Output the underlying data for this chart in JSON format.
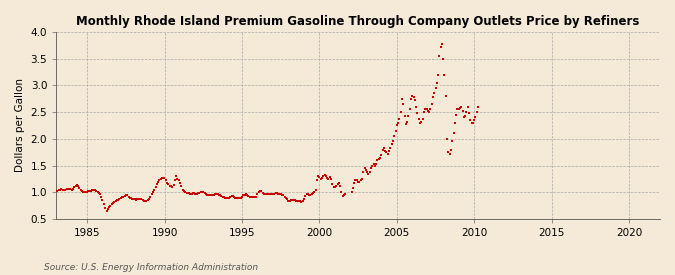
{
  "title": "Monthly Rhode Island Premium Gasoline Through Company Outlets Price by Refiners",
  "ylabel": "Dollars per Gallon",
  "source": "Source: U.S. Energy Information Administration",
  "xlim": [
    1983,
    2022
  ],
  "ylim": [
    0.5,
    4.0
  ],
  "yticks": [
    0.5,
    1.0,
    1.5,
    2.0,
    2.5,
    3.0,
    3.5,
    4.0
  ],
  "xticks": [
    1985,
    1990,
    1995,
    2000,
    2005,
    2010,
    2015,
    2020
  ],
  "background_color": "#f5ead8",
  "marker_color": "#cc0000",
  "data": [
    [
      1983.08,
      1.03
    ],
    [
      1983.17,
      1.04
    ],
    [
      1983.25,
      1.05
    ],
    [
      1983.33,
      1.06
    ],
    [
      1983.42,
      1.05
    ],
    [
      1983.5,
      1.05
    ],
    [
      1983.58,
      1.05
    ],
    [
      1983.67,
      1.06
    ],
    [
      1983.75,
      1.07
    ],
    [
      1983.83,
      1.07
    ],
    [
      1983.92,
      1.06
    ],
    [
      1983.99,
      1.05
    ],
    [
      1984.08,
      1.07
    ],
    [
      1984.17,
      1.1
    ],
    [
      1984.25,
      1.12
    ],
    [
      1984.33,
      1.13
    ],
    [
      1984.42,
      1.11
    ],
    [
      1984.5,
      1.08
    ],
    [
      1984.58,
      1.05
    ],
    [
      1984.67,
      1.03
    ],
    [
      1984.75,
      1.01
    ],
    [
      1984.83,
      1.01
    ],
    [
      1984.92,
      1.01
    ],
    [
      1984.99,
      1.0
    ],
    [
      1985.08,
      1.02
    ],
    [
      1985.17,
      1.03
    ],
    [
      1985.25,
      1.03
    ],
    [
      1985.33,
      1.04
    ],
    [
      1985.42,
      1.04
    ],
    [
      1985.5,
      1.04
    ],
    [
      1985.58,
      1.03
    ],
    [
      1985.67,
      1.0
    ],
    [
      1985.75,
      0.99
    ],
    [
      1985.83,
      0.97
    ],
    [
      1985.92,
      0.92
    ],
    [
      1985.99,
      0.85
    ],
    [
      1986.08,
      0.78
    ],
    [
      1986.17,
      0.7
    ],
    [
      1986.25,
      0.65
    ],
    [
      1986.33,
      0.68
    ],
    [
      1986.42,
      0.72
    ],
    [
      1986.5,
      0.75
    ],
    [
      1986.58,
      0.78
    ],
    [
      1986.67,
      0.8
    ],
    [
      1986.75,
      0.82
    ],
    [
      1986.83,
      0.84
    ],
    [
      1986.92,
      0.85
    ],
    [
      1986.99,
      0.86
    ],
    [
      1987.08,
      0.88
    ],
    [
      1987.17,
      0.9
    ],
    [
      1987.25,
      0.91
    ],
    [
      1987.33,
      0.92
    ],
    [
      1987.42,
      0.93
    ],
    [
      1987.5,
      0.94
    ],
    [
      1987.58,
      0.94
    ],
    [
      1987.67,
      0.92
    ],
    [
      1987.75,
      0.9
    ],
    [
      1987.83,
      0.89
    ],
    [
      1987.92,
      0.88
    ],
    [
      1987.99,
      0.87
    ],
    [
      1988.08,
      0.87
    ],
    [
      1988.17,
      0.86
    ],
    [
      1988.25,
      0.87
    ],
    [
      1988.33,
      0.88
    ],
    [
      1988.42,
      0.88
    ],
    [
      1988.5,
      0.88
    ],
    [
      1988.58,
      0.86
    ],
    [
      1988.67,
      0.83
    ],
    [
      1988.75,
      0.83
    ],
    [
      1988.83,
      0.84
    ],
    [
      1988.92,
      0.85
    ],
    [
      1988.99,
      0.87
    ],
    [
      1989.08,
      0.92
    ],
    [
      1989.17,
      0.96
    ],
    [
      1989.25,
      1.0
    ],
    [
      1989.33,
      1.05
    ],
    [
      1989.42,
      1.1
    ],
    [
      1989.5,
      1.15
    ],
    [
      1989.58,
      1.19
    ],
    [
      1989.67,
      1.22
    ],
    [
      1989.75,
      1.25
    ],
    [
      1989.83,
      1.26
    ],
    [
      1989.92,
      1.27
    ],
    [
      1989.99,
      1.27
    ],
    [
      1990.08,
      1.22
    ],
    [
      1990.17,
      1.18
    ],
    [
      1990.25,
      1.15
    ],
    [
      1990.33,
      1.12
    ],
    [
      1990.42,
      1.12
    ],
    [
      1990.5,
      1.1
    ],
    [
      1990.58,
      1.14
    ],
    [
      1990.67,
      1.22
    ],
    [
      1990.75,
      1.3
    ],
    [
      1990.83,
      1.25
    ],
    [
      1990.92,
      1.22
    ],
    [
      1990.99,
      1.18
    ],
    [
      1991.08,
      1.12
    ],
    [
      1991.17,
      1.05
    ],
    [
      1991.25,
      1.02
    ],
    [
      1991.33,
      1.0
    ],
    [
      1991.42,
      0.99
    ],
    [
      1991.5,
      0.99
    ],
    [
      1991.58,
      0.98
    ],
    [
      1991.67,
      0.97
    ],
    [
      1991.75,
      0.97
    ],
    [
      1991.83,
      0.98
    ],
    [
      1991.92,
      0.98
    ],
    [
      1991.99,
      0.97
    ],
    [
      1992.08,
      0.97
    ],
    [
      1992.17,
      0.98
    ],
    [
      1992.25,
      0.99
    ],
    [
      1992.33,
      1.0
    ],
    [
      1992.42,
      1.0
    ],
    [
      1992.5,
      1.0
    ],
    [
      1992.58,
      0.99
    ],
    [
      1992.67,
      0.97
    ],
    [
      1992.75,
      0.95
    ],
    [
      1992.83,
      0.94
    ],
    [
      1992.92,
      0.94
    ],
    [
      1992.99,
      0.94
    ],
    [
      1993.08,
      0.95
    ],
    [
      1993.17,
      0.95
    ],
    [
      1993.25,
      0.96
    ],
    [
      1993.33,
      0.96
    ],
    [
      1993.42,
      0.96
    ],
    [
      1993.5,
      0.95
    ],
    [
      1993.58,
      0.94
    ],
    [
      1993.67,
      0.93
    ],
    [
      1993.75,
      0.92
    ],
    [
      1993.83,
      0.91
    ],
    [
      1993.92,
      0.9
    ],
    [
      1993.99,
      0.89
    ],
    [
      1994.08,
      0.89
    ],
    [
      1994.17,
      0.9
    ],
    [
      1994.25,
      0.92
    ],
    [
      1994.33,
      0.93
    ],
    [
      1994.42,
      0.93
    ],
    [
      1994.5,
      0.92
    ],
    [
      1994.58,
      0.9
    ],
    [
      1994.67,
      0.9
    ],
    [
      1994.75,
      0.9
    ],
    [
      1994.83,
      0.9
    ],
    [
      1994.92,
      0.9
    ],
    [
      1994.99,
      0.92
    ],
    [
      1995.08,
      0.94
    ],
    [
      1995.17,
      0.95
    ],
    [
      1995.25,
      0.96
    ],
    [
      1995.33,
      0.95
    ],
    [
      1995.42,
      0.93
    ],
    [
      1995.5,
      0.92
    ],
    [
      1995.58,
      0.91
    ],
    [
      1995.67,
      0.91
    ],
    [
      1995.75,
      0.91
    ],
    [
      1995.83,
      0.91
    ],
    [
      1995.92,
      0.91
    ],
    [
      1995.99,
      0.96
    ],
    [
      1996.08,
      1.0
    ],
    [
      1996.17,
      1.02
    ],
    [
      1996.25,
      1.02
    ],
    [
      1996.33,
      0.99
    ],
    [
      1996.42,
      0.97
    ],
    [
      1996.5,
      0.97
    ],
    [
      1996.58,
      0.97
    ],
    [
      1996.67,
      0.97
    ],
    [
      1996.75,
      0.96
    ],
    [
      1996.83,
      0.96
    ],
    [
      1996.92,
      0.96
    ],
    [
      1996.99,
      0.96
    ],
    [
      1997.08,
      0.97
    ],
    [
      1997.17,
      0.98
    ],
    [
      1997.25,
      0.98
    ],
    [
      1997.33,
      0.97
    ],
    [
      1997.42,
      0.96
    ],
    [
      1997.5,
      0.96
    ],
    [
      1997.58,
      0.95
    ],
    [
      1997.67,
      0.94
    ],
    [
      1997.75,
      0.92
    ],
    [
      1997.83,
      0.9
    ],
    [
      1997.92,
      0.87
    ],
    [
      1997.99,
      0.84
    ],
    [
      1998.08,
      0.84
    ],
    [
      1998.17,
      0.85
    ],
    [
      1998.25,
      0.86
    ],
    [
      1998.33,
      0.86
    ],
    [
      1998.42,
      0.85
    ],
    [
      1998.5,
      0.84
    ],
    [
      1998.58,
      0.83
    ],
    [
      1998.67,
      0.84
    ],
    [
      1998.75,
      0.83
    ],
    [
      1998.83,
      0.82
    ],
    [
      1998.92,
      0.84
    ],
    [
      1998.99,
      0.88
    ],
    [
      1999.08,
      0.93
    ],
    [
      1999.17,
      0.96
    ],
    [
      1999.25,
      0.96
    ],
    [
      1999.33,
      0.95
    ],
    [
      1999.42,
      0.95
    ],
    [
      1999.5,
      0.96
    ],
    [
      1999.58,
      0.98
    ],
    [
      1999.67,
      1.0
    ],
    [
      1999.75,
      1.05
    ],
    [
      1999.83,
      1.22
    ],
    [
      1999.92,
      1.3
    ],
    [
      1999.99,
      1.28
    ],
    [
      2000.08,
      1.24
    ],
    [
      2000.17,
      1.26
    ],
    [
      2000.25,
      1.3
    ],
    [
      2000.33,
      1.32
    ],
    [
      2000.42,
      1.3
    ],
    [
      2000.5,
      1.26
    ],
    [
      2000.58,
      1.24
    ],
    [
      2000.67,
      1.28
    ],
    [
      2000.75,
      1.24
    ],
    [
      2000.83,
      1.16
    ],
    [
      2000.92,
      1.1
    ],
    [
      2000.99,
      1.1
    ],
    [
      2001.08,
      1.12
    ],
    [
      2001.17,
      1.15
    ],
    [
      2001.25,
      1.18
    ],
    [
      2001.33,
      1.12
    ],
    [
      2001.42,
      1.0
    ],
    [
      2001.5,
      0.93
    ],
    [
      2001.58,
      0.95
    ],
    [
      2001.67,
      0.96
    ],
    [
      2002.08,
      1.0
    ],
    [
      2002.17,
      1.08
    ],
    [
      2002.25,
      1.18
    ],
    [
      2002.33,
      1.22
    ],
    [
      2002.42,
      1.22
    ],
    [
      2002.5,
      1.2
    ],
    [
      2002.58,
      1.2
    ],
    [
      2002.67,
      1.22
    ],
    [
      2002.75,
      1.25
    ],
    [
      2002.83,
      1.38
    ],
    [
      2002.92,
      1.45
    ],
    [
      2002.99,
      1.42
    ],
    [
      2003.08,
      1.38
    ],
    [
      2003.17,
      1.35
    ],
    [
      2003.25,
      1.38
    ],
    [
      2003.33,
      1.45
    ],
    [
      2003.42,
      1.5
    ],
    [
      2003.5,
      1.52
    ],
    [
      2003.58,
      1.5
    ],
    [
      2003.67,
      1.52
    ],
    [
      2003.75,
      1.6
    ],
    [
      2003.83,
      1.62
    ],
    [
      2003.92,
      1.65
    ],
    [
      2003.99,
      1.7
    ],
    [
      2004.08,
      1.8
    ],
    [
      2004.17,
      1.82
    ],
    [
      2004.25,
      1.78
    ],
    [
      2004.33,
      1.75
    ],
    [
      2004.42,
      1.72
    ],
    [
      2004.5,
      1.78
    ],
    [
      2004.58,
      1.82
    ],
    [
      2004.67,
      1.9
    ],
    [
      2004.75,
      1.95
    ],
    [
      2004.83,
      2.05
    ],
    [
      2004.92,
      2.15
    ],
    [
      2004.99,
      2.25
    ],
    [
      2005.08,
      2.3
    ],
    [
      2005.17,
      2.38
    ],
    [
      2005.25,
      2.5
    ],
    [
      2005.33,
      2.75
    ],
    [
      2005.42,
      2.65
    ],
    [
      2005.5,
      2.42
    ],
    [
      2005.58,
      2.28
    ],
    [
      2005.67,
      2.32
    ],
    [
      2005.75,
      2.42
    ],
    [
      2005.83,
      2.55
    ],
    [
      2005.92,
      2.75
    ],
    [
      2005.99,
      2.8
    ],
    [
      2006.08,
      2.78
    ],
    [
      2006.17,
      2.72
    ],
    [
      2006.25,
      2.6
    ],
    [
      2006.33,
      2.48
    ],
    [
      2006.42,
      2.38
    ],
    [
      2006.5,
      2.3
    ],
    [
      2006.58,
      2.32
    ],
    [
      2006.67,
      2.38
    ],
    [
      2006.75,
      2.5
    ],
    [
      2006.83,
      2.55
    ],
    [
      2006.92,
      2.55
    ],
    [
      2006.99,
      2.52
    ],
    [
      2007.08,
      2.5
    ],
    [
      2007.17,
      2.55
    ],
    [
      2007.25,
      2.65
    ],
    [
      2007.33,
      2.78
    ],
    [
      2007.42,
      2.85
    ],
    [
      2007.5,
      2.95
    ],
    [
      2007.58,
      3.05
    ],
    [
      2007.67,
      3.2
    ],
    [
      2007.75,
      3.55
    ],
    [
      2007.83,
      3.72
    ],
    [
      2007.92,
      3.78
    ],
    [
      2007.99,
      3.5
    ],
    [
      2008.08,
      3.2
    ],
    [
      2008.17,
      2.8
    ],
    [
      2008.25,
      2.0
    ],
    [
      2008.33,
      1.75
    ],
    [
      2008.42,
      1.72
    ],
    [
      2008.5,
      1.8
    ],
    [
      2008.58,
      1.95
    ],
    [
      2008.67,
      2.1
    ],
    [
      2008.75,
      2.3
    ],
    [
      2008.83,
      2.45
    ],
    [
      2008.92,
      2.55
    ],
    [
      2008.99,
      2.55
    ],
    [
      2009.08,
      2.58
    ],
    [
      2009.17,
      2.6
    ],
    [
      2009.25,
      2.52
    ],
    [
      2009.33,
      2.4
    ],
    [
      2009.42,
      2.42
    ],
    [
      2009.5,
      2.5
    ],
    [
      2009.58,
      2.6
    ],
    [
      2009.67,
      2.48
    ],
    [
      2009.75,
      2.35
    ],
    [
      2009.83,
      2.3
    ],
    [
      2009.92,
      2.3
    ],
    [
      2009.99,
      2.35
    ],
    [
      2010.08,
      2.4
    ],
    [
      2010.17,
      2.5
    ],
    [
      2010.25,
      2.6
    ]
  ]
}
